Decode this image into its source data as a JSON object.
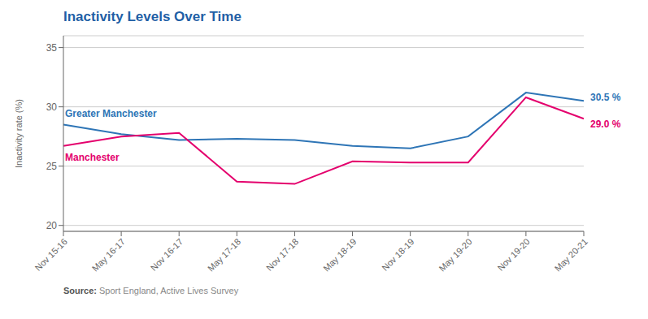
{
  "chart_data": {
    "type": "line",
    "title": "Inactivity Levels Over Time",
    "title_color": "#1f5fa6",
    "y_label": "Inactivity rate (%)",
    "categories": [
      "Nov 15-16",
      "May 16-17",
      "Nov 16-17",
      "May 17-18",
      "Nov 17-18",
      "May 18-19",
      "Nov 18-19",
      "May 19-20",
      "Nov 19-20",
      "May 20-21"
    ],
    "series": [
      {
        "name": "Greater Manchester",
        "color": "#2e75b6",
        "values": [
          28.5,
          27.7,
          27.2,
          27.3,
          27.2,
          26.7,
          26.5,
          27.5,
          31.2,
          30.5
        ]
      },
      {
        "name": "Manchester",
        "color": "#e4006d",
        "values": [
          26.7,
          27.5,
          27.8,
          23.7,
          23.5,
          25.4,
          25.3,
          25.3,
          30.8,
          29.0
        ]
      }
    ],
    "ylim": [
      19.5,
      36
    ],
    "yticks": [
      20,
      25,
      30,
      35
    ],
    "grid": true,
    "marker": "none",
    "annotations": [
      {
        "text": "30.5 %",
        "series": "Greater Manchester"
      },
      {
        "text": "29.0 %",
        "series": "Manchester"
      }
    ],
    "source_label": "Source:",
    "source": " Sport England, Active Lives Survey"
  }
}
